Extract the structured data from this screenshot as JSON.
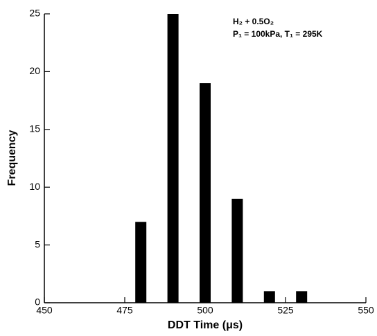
{
  "chart_data": {
    "type": "bar",
    "x": [
      480,
      490,
      500,
      510,
      520,
      530
    ],
    "values": [
      7,
      25,
      19,
      9,
      1,
      1
    ],
    "color": "#000000",
    "xlim": [
      450,
      550
    ],
    "xticks": [
      450,
      475,
      500,
      525,
      550
    ],
    "ylim": [
      0,
      25
    ],
    "yticks": [
      0,
      5,
      10,
      15,
      20,
      25
    ],
    "x_label": "DDT Time (μs)",
    "y_label": "Frequency",
    "annotations": [
      "H₂ + 0.5O₂",
      "P₁ = 100kPa, T₁ = 295K"
    ]
  }
}
